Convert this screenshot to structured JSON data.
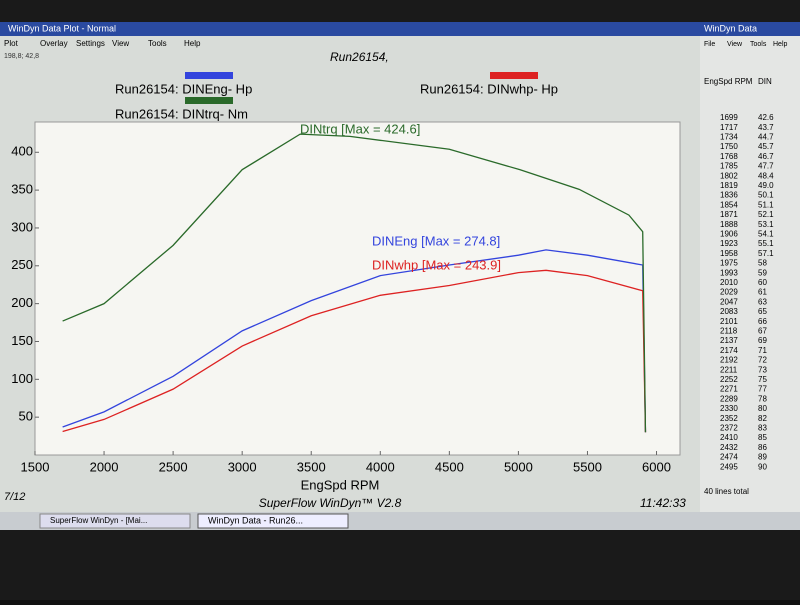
{
  "window": {
    "title": "WinDyn Data Plot - Normal",
    "menu": [
      "Plot",
      "Overlay",
      "Settings",
      "View",
      "Tools",
      "Help"
    ],
    "coords": "198,8; 42,8",
    "footer_left": "7/12",
    "footer_center": "SuperFlow WinDyn™ V2.8",
    "footer_right": "11:42:33"
  },
  "side_panel": {
    "title": "WinDyn Data",
    "menu": [
      "File",
      "View",
      "Tools",
      "Help"
    ],
    "columns": [
      "EngSpd RPM",
      "DIN"
    ],
    "rows": [
      [
        "1699",
        "42.6"
      ],
      [
        "1717",
        "43.7"
      ],
      [
        "1734",
        "44.7"
      ],
      [
        "1750",
        "45.7"
      ],
      [
        "1768",
        "46.7"
      ],
      [
        "1785",
        "47.7"
      ],
      [
        "1802",
        "48.4"
      ],
      [
        "1819",
        "49.0"
      ],
      [
        "1836",
        "50.1"
      ],
      [
        "1854",
        "51.1"
      ],
      [
        "1871",
        "52.1"
      ],
      [
        "1888",
        "53.1"
      ],
      [
        "1906",
        "54.1"
      ],
      [
        "1923",
        "55.1"
      ],
      [
        "1958",
        "57.1"
      ],
      [
        "1975",
        "58"
      ],
      [
        "1993",
        "59"
      ],
      [
        "2010",
        "60"
      ],
      [
        "2029",
        "61"
      ],
      [
        "2047",
        "63"
      ],
      [
        "2083",
        "65"
      ],
      [
        "2101",
        "66"
      ],
      [
        "2118",
        "67"
      ],
      [
        "2137",
        "69"
      ],
      [
        "2174",
        "71"
      ],
      [
        "2192",
        "72"
      ],
      [
        "2211",
        "73"
      ],
      [
        "2252",
        "75"
      ],
      [
        "2271",
        "77"
      ],
      [
        "2289",
        "78"
      ],
      [
        "2330",
        "80"
      ],
      [
        "2352",
        "82"
      ],
      [
        "2372",
        "83"
      ],
      [
        "2410",
        "85"
      ],
      [
        "2432",
        "86"
      ],
      [
        "2474",
        "89"
      ],
      [
        "2495",
        "90"
      ]
    ],
    "footer": "40 lines total"
  },
  "taskbar": [
    "SuperFlow WinDyn - [Mai...",
    "WinDyn Data - Run26..."
  ],
  "chart_data": {
    "type": "line",
    "title": "Run26154,",
    "x_label": "EngSpd  RPM",
    "annotations": [
      "DINtrq [Max = 424.6]",
      "DINEng [Max = 274.8]",
      "DINwhp [Max = 243.9]"
    ],
    "xlim": [
      1500,
      6170
    ],
    "xticks": [
      1500,
      2000,
      2500,
      3000,
      3500,
      4000,
      4500,
      5000,
      5500,
      6000
    ],
    "ylim": [
      0,
      440
    ],
    "yticks": [
      50,
      100,
      150,
      200,
      250,
      300,
      350,
      400
    ],
    "series": [
      {
        "name": "Run26154: DINEng- Hp",
        "color": "#3344dd",
        "x": [
          1700,
          2000,
          2500,
          3000,
          3500,
          4000,
          4500,
          5000,
          5200,
          5500,
          5900,
          5920
        ],
        "values": [
          37,
          57,
          104,
          164,
          204,
          237,
          251,
          264,
          271,
          264,
          251,
          30
        ]
      },
      {
        "name": "Run26154: DINwhp- Hp",
        "color": "#dd2222",
        "x": [
          1700,
          2000,
          2500,
          3000,
          3500,
          4000,
          4500,
          5000,
          5200,
          5500,
          5900,
          5920
        ],
        "values": [
          31,
          47,
          87,
          144,
          184,
          211,
          224,
          241,
          244,
          237,
          217,
          30
        ]
      },
      {
        "name": "Run26154: DINtrq- Nm",
        "color": "#2a6a2a",
        "x": [
          1700,
          2000,
          2500,
          3000,
          3420,
          3780,
          4500,
          5010,
          5440,
          5800,
          5900,
          5920
        ],
        "values": [
          177,
          200,
          277,
          377,
          424,
          421,
          404,
          377,
          351,
          317,
          295,
          30
        ]
      }
    ]
  }
}
